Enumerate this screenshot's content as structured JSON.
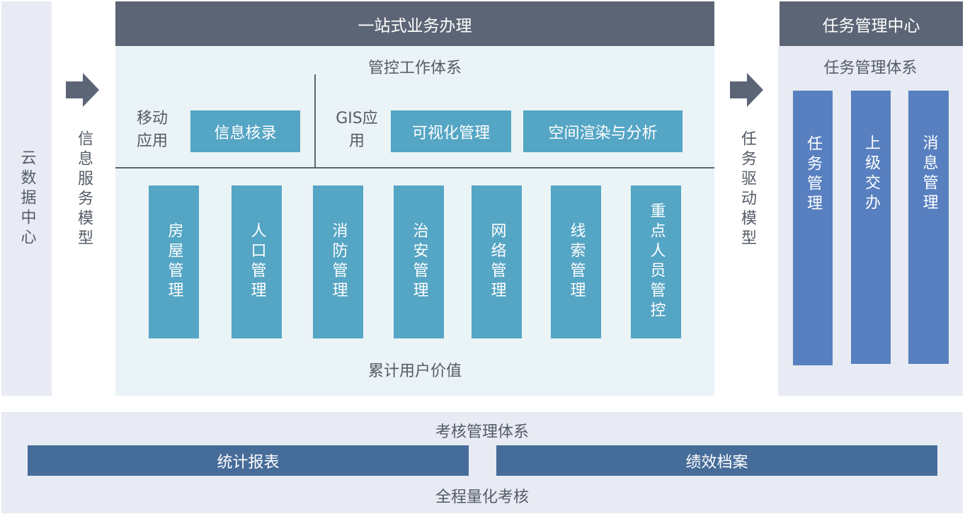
{
  "left": {
    "label": "云数据中心"
  },
  "arrow1": {
    "label": "信息服务模型",
    "icon": "arrow-right-icon"
  },
  "center": {
    "title": "一站式业务办理",
    "subtitle": "管控工作体系",
    "mobile": {
      "label": "移动应用",
      "items": [
        "信息核录"
      ]
    },
    "gis": {
      "label": "GIS应用",
      "items": [
        "可视化管理",
        "空间渲染与分析"
      ]
    },
    "modules": [
      "房屋管理",
      "人口管理",
      "消防管理",
      "治安管理",
      "网络管理",
      "线索管理",
      "重点人员管控"
    ],
    "footer": "累计用户价值"
  },
  "arrow2": {
    "label": "任务驱动模型",
    "icon": "arrow-right-icon"
  },
  "right": {
    "title": "任务管理中心",
    "subtitle": "任务管理体系",
    "columns": [
      "任务管理",
      "上级交办",
      "消息管理"
    ]
  },
  "bottom": {
    "title": "考核管理体系",
    "bars": [
      "统计报表",
      "绩效档案"
    ],
    "footer": "全程量化考核"
  },
  "colors": {
    "header": "#5c6575",
    "teal": "#55a5c4",
    "blue": "#5880c0",
    "bar": "#466c99",
    "panel": "#e8ebf3",
    "center_bg": "#eaf3f6"
  }
}
